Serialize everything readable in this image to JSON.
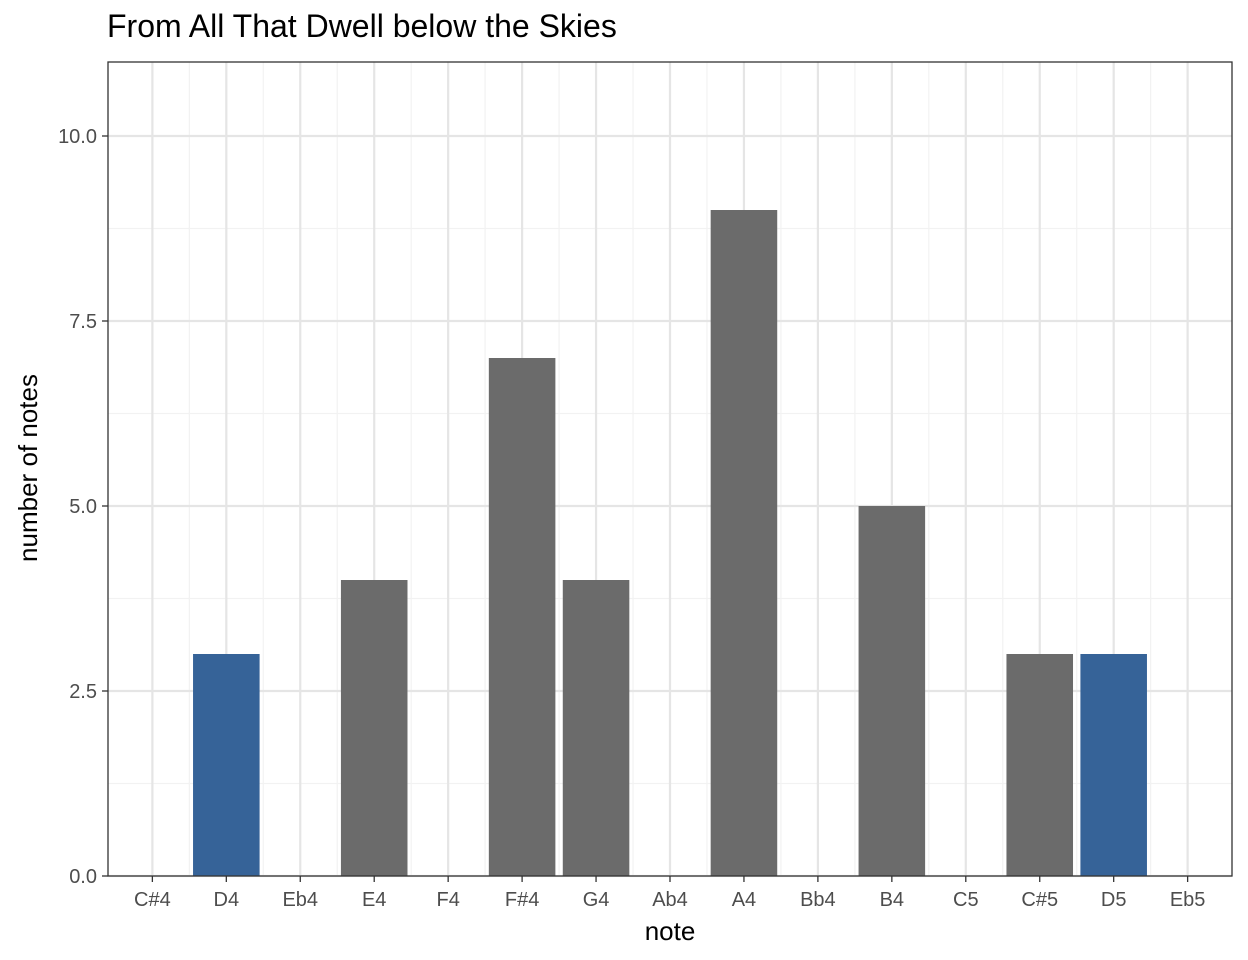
{
  "chart_data": {
    "type": "bar",
    "title": "From All That Dwell below the Skies",
    "xlabel": "note",
    "ylabel": "number of notes",
    "categories": [
      "C#4",
      "D4",
      "Eb4",
      "E4",
      "F4",
      "F#4",
      "G4",
      "Ab4",
      "A4",
      "Bb4",
      "B4",
      "C5",
      "C#5",
      "D5",
      "Eb5"
    ],
    "values": [
      0,
      3,
      0,
      4,
      0,
      7,
      4,
      0,
      9,
      0,
      5,
      0,
      3,
      3,
      0
    ],
    "highlighted": [
      false,
      true,
      false,
      false,
      false,
      false,
      false,
      false,
      false,
      false,
      false,
      false,
      false,
      true,
      false
    ],
    "ylim": [
      0,
      11
    ],
    "yticks": [
      0,
      2.5,
      5,
      7.5,
      10
    ],
    "ytick_labels": [
      "0.0",
      "2.5",
      "5.0",
      "7.5",
      "10.0"
    ],
    "grid": true,
    "legend": "none",
    "colors": {
      "bar_default": "#6b6b6b",
      "bar_highlight": "#366398",
      "grid_major": "#e5e5e5",
      "grid_minor": "#f2f2f2",
      "panel_border": "#333333",
      "tick_text": "#4d4d4d"
    }
  }
}
